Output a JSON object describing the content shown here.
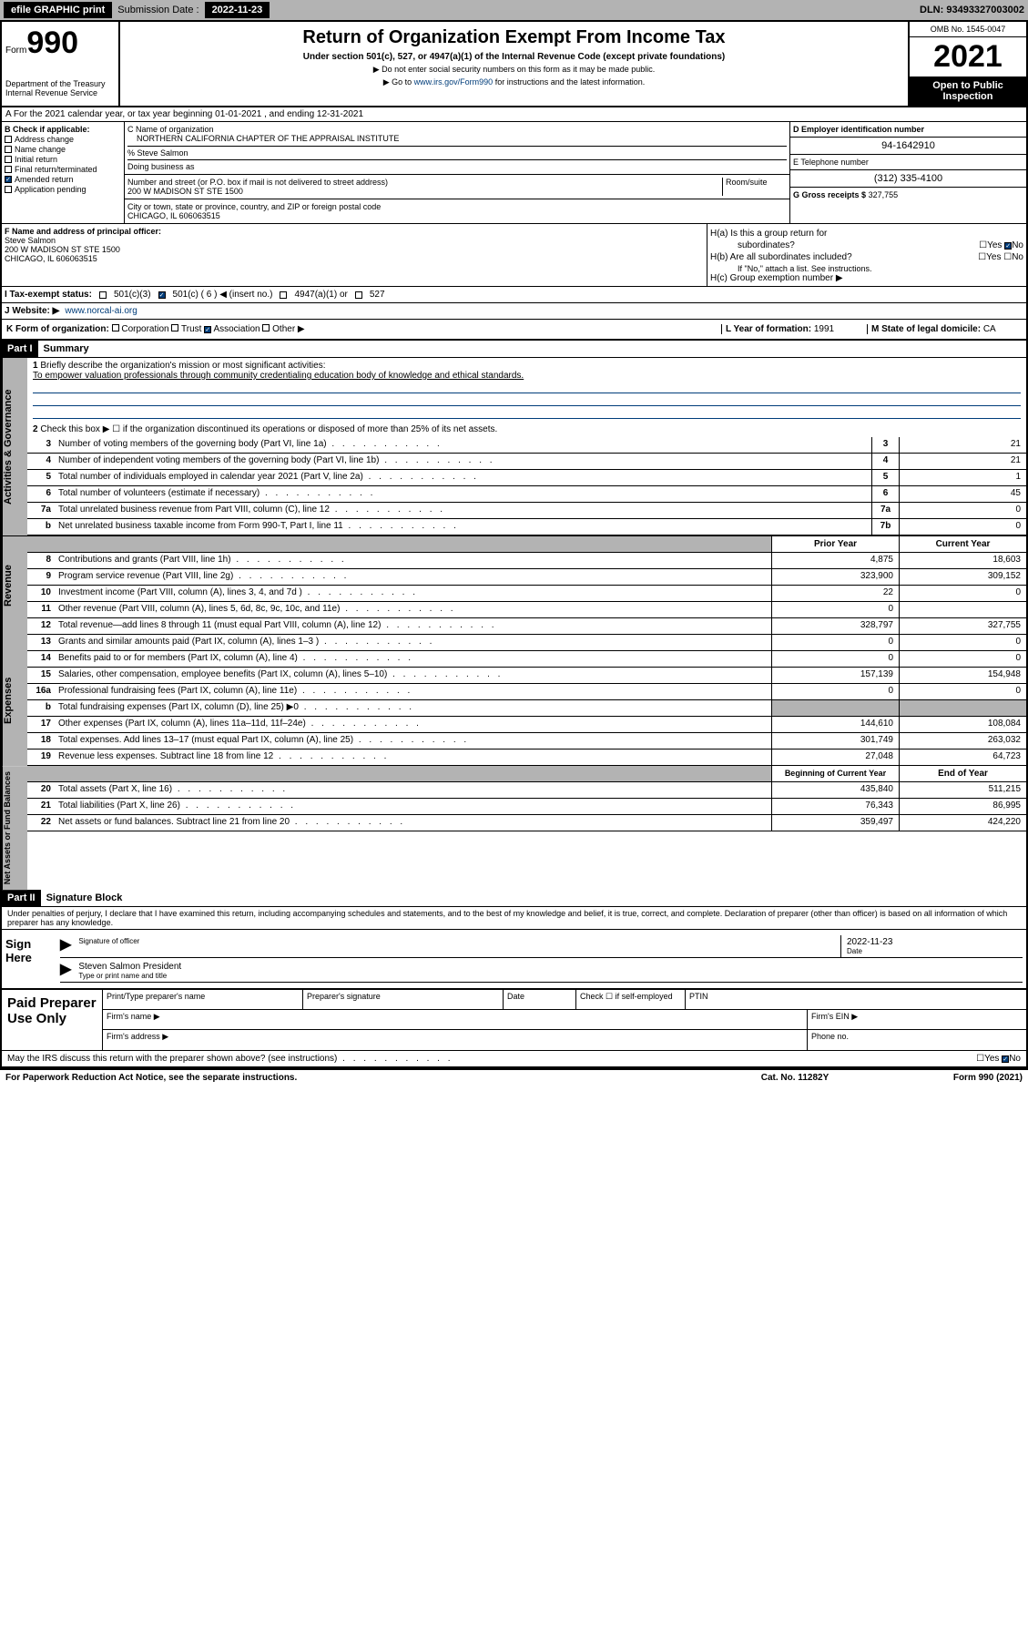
{
  "top": {
    "efile": "efile GRAPHIC print",
    "sub_lbl": "Submission Date :",
    "sub_date": "2022-11-23",
    "dln": "DLN: 93493327003002"
  },
  "header": {
    "form_lbl": "Form",
    "form_num": "990",
    "dept": "Department of the Treasury",
    "irs": "Internal Revenue Service",
    "title": "Return of Organization Exempt From Income Tax",
    "sub": "Under section 501(c), 527, or 4947(a)(1) of the Internal Revenue Code (except private foundations)",
    "note1": "▶ Do not enter social security numbers on this form as it may be made public.",
    "note2_pre": "▶ Go to ",
    "note2_link": "www.irs.gov/Form990",
    "note2_post": " for instructions and the latest information.",
    "omb": "OMB No. 1545-0047",
    "year": "2021",
    "pub1": "Open to Public",
    "pub2": "Inspection"
  },
  "row_a": "A For the 2021 calendar year, or tax year beginning 01-01-2021   , and ending 12-31-2021",
  "section_b": {
    "lbl": "B Check if applicable:",
    "items": [
      "Address change",
      "Name change",
      "Initial return",
      "Final return/terminated",
      "Amended return",
      "Application pending"
    ],
    "checked_idx": 4
  },
  "section_c": {
    "name_lbl": "C Name of organization",
    "name": "NORTHERN CALIFORNIA CHAPTER OF THE APPRAISAL INSTITUTE",
    "care": "% Steve Salmon",
    "dba_lbl": "Doing business as",
    "addr_lbl": "Number and street (or P.O. box if mail is not delivered to street address)",
    "addr": "200 W MADISON ST STE 1500",
    "room_lbl": "Room/suite",
    "city_lbl": "City or town, state or province, country, and ZIP or foreign postal code",
    "city": "CHICAGO, IL  606063515"
  },
  "section_d": {
    "d_lbl": "D Employer identification number",
    "d_val": "94-1642910",
    "e_lbl": "E Telephone number",
    "e_val": "(312) 335-4100",
    "g_lbl": "G Gross receipts $",
    "g_val": "327,755"
  },
  "section_f": {
    "f_lbl": "F Name and address of principal officer:",
    "f_name": "Steve Salmon",
    "f_addr1": "200 W MADISON ST STE 1500",
    "f_addr2": "CHICAGO, IL  606063515"
  },
  "section_h": {
    "ha": "H(a)  Is this a group return for",
    "ha2": "subordinates?",
    "hb": "H(b)  Are all subordinates included?",
    "hb_note": "If \"No,\" attach a list. See instructions.",
    "hc": "H(c)  Group exemption number ▶",
    "yes": "Yes",
    "no": "No"
  },
  "row_i": {
    "lbl": "I  Tax-exempt status:",
    "o1": "501(c)(3)",
    "o2": "501(c) ( 6 ) ◀ (insert no.)",
    "o3": "4947(a)(1) or",
    "o4": "527"
  },
  "row_j": {
    "lbl": "J  Website: ▶",
    "val": "www.norcal-ai.org"
  },
  "row_k": {
    "lbl": "K Form of organization:",
    "o1": "Corporation",
    "o2": "Trust",
    "o3": "Association",
    "o4": "Other ▶",
    "l_lbl": "L Year of formation:",
    "l_val": "1991",
    "m_lbl": "M State of legal domicile:",
    "m_val": "CA"
  },
  "part1": {
    "hdr": "Part I",
    "title": "Summary",
    "q1_lbl": "1",
    "q1": "Briefly describe the organization's mission or most significant activities:",
    "q1_ans": "To empower valuation professionals through community credentialing education body of knowledge and ethical standards.",
    "q2_lbl": "2",
    "q2": "Check this box ▶ ☐ if the organization discontinued its operations or disposed of more than 25% of its net assets.",
    "rows": [
      {
        "n": "3",
        "t": "Number of voting members of the governing body (Part VI, line 1a)",
        "box": "3",
        "v": "21"
      },
      {
        "n": "4",
        "t": "Number of independent voting members of the governing body (Part VI, line 1b)",
        "box": "4",
        "v": "21"
      },
      {
        "n": "5",
        "t": "Total number of individuals employed in calendar year 2021 (Part V, line 2a)",
        "box": "5",
        "v": "1"
      },
      {
        "n": "6",
        "t": "Total number of volunteers (estimate if necessary)",
        "box": "6",
        "v": "45"
      },
      {
        "n": "7a",
        "t": "Total unrelated business revenue from Part VIII, column (C), line 12",
        "box": "7a",
        "v": "0"
      },
      {
        "n": "b",
        "t": "Net unrelated business taxable income from Form 990-T, Part I, line 11",
        "box": "7b",
        "v": "0"
      }
    ],
    "col_prior": "Prior Year",
    "col_curr": "Current Year",
    "rev_rows": [
      {
        "n": "8",
        "t": "Contributions and grants (Part VIII, line 1h)",
        "p": "4,875",
        "c": "18,603"
      },
      {
        "n": "9",
        "t": "Program service revenue (Part VIII, line 2g)",
        "p": "323,900",
        "c": "309,152"
      },
      {
        "n": "10",
        "t": "Investment income (Part VIII, column (A), lines 3, 4, and 7d )",
        "p": "22",
        "c": "0"
      },
      {
        "n": "11",
        "t": "Other revenue (Part VIII, column (A), lines 5, 6d, 8c, 9c, 10c, and 11e)",
        "p": "0",
        "c": ""
      },
      {
        "n": "12",
        "t": "Total revenue—add lines 8 through 11 (must equal Part VIII, column (A), line 12)",
        "p": "328,797",
        "c": "327,755"
      }
    ],
    "exp_rows": [
      {
        "n": "13",
        "t": "Grants and similar amounts paid (Part IX, column (A), lines 1–3 )",
        "p": "0",
        "c": "0"
      },
      {
        "n": "14",
        "t": "Benefits paid to or for members (Part IX, column (A), line 4)",
        "p": "0",
        "c": "0"
      },
      {
        "n": "15",
        "t": "Salaries, other compensation, employee benefits (Part IX, column (A), lines 5–10)",
        "p": "157,139",
        "c": "154,948"
      },
      {
        "n": "16a",
        "t": "Professional fundraising fees (Part IX, column (A), line 11e)",
        "p": "0",
        "c": "0"
      },
      {
        "n": "b",
        "t": "Total fundraising expenses (Part IX, column (D), line 25) ▶0",
        "p": "",
        "c": "",
        "gray": true
      },
      {
        "n": "17",
        "t": "Other expenses (Part IX, column (A), lines 11a–11d, 11f–24e)",
        "p": "144,610",
        "c": "108,084"
      },
      {
        "n": "18",
        "t": "Total expenses. Add lines 13–17 (must equal Part IX, column (A), line 25)",
        "p": "301,749",
        "c": "263,032"
      },
      {
        "n": "19",
        "t": "Revenue less expenses. Subtract line 18 from line 12",
        "p": "27,048",
        "c": "64,723"
      }
    ],
    "col_beg": "Beginning of Current Year",
    "col_end": "End of Year",
    "net_rows": [
      {
        "n": "20",
        "t": "Total assets (Part X, line 16)",
        "p": "435,840",
        "c": "511,215"
      },
      {
        "n": "21",
        "t": "Total liabilities (Part X, line 26)",
        "p": "76,343",
        "c": "86,995"
      },
      {
        "n": "22",
        "t": "Net assets or fund balances. Subtract line 21 from line 20",
        "p": "359,497",
        "c": "424,220"
      }
    ],
    "side1": "Activities & Governance",
    "side2": "Revenue",
    "side3": "Expenses",
    "side4": "Net Assets or Fund Balances"
  },
  "part2": {
    "hdr": "Part II",
    "title": "Signature Block",
    "decl": "Under penalties of perjury, I declare that I have examined this return, including accompanying schedules and statements, and to the best of my knowledge and belief, it is true, correct, and complete. Declaration of preparer (other than officer) is based on all information of which preparer has any knowledge.",
    "sign_here": "Sign Here",
    "sig_officer": "Signature of officer",
    "sig_date_lbl": "Date",
    "sig_date": "2022-11-23",
    "sig_name": "Steven Salmon President",
    "sig_name_lbl": "Type or print name and title",
    "paid": "Paid Preparer Use Only",
    "prep_name_lbl": "Print/Type preparer's name",
    "prep_sig_lbl": "Preparer's signature",
    "date_lbl": "Date",
    "check_lbl": "Check ☐ if self-employed",
    "ptin_lbl": "PTIN",
    "firm_name_lbl": "Firm's name  ▶",
    "firm_ein_lbl": "Firm's EIN ▶",
    "firm_addr_lbl": "Firm's address ▶",
    "phone_lbl": "Phone no."
  },
  "footer": {
    "may": "May the IRS discuss this return with the preparer shown above? (see instructions)",
    "paperwork": "For Paperwork Reduction Act Notice, see the separate instructions.",
    "cat": "Cat. No. 11282Y",
    "form": "Form 990 (2021)"
  }
}
